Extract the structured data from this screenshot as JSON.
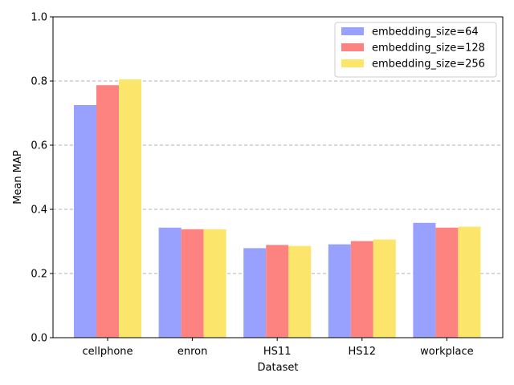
{
  "chart_data": {
    "type": "bar",
    "title": "",
    "xlabel": "Dataset",
    "ylabel": "Mean MAP",
    "ylim": [
      0,
      1.0
    ],
    "yticks": [
      "0.0",
      "0.2",
      "0.4",
      "0.6",
      "0.8",
      "1.0"
    ],
    "grid": "horizontal dashed",
    "legend_position": "top-right",
    "categories": [
      "cellphone",
      "enron",
      "HS11",
      "HS12",
      "workplace"
    ],
    "series": [
      {
        "name": "embedding_size=64",
        "color": "#98a2fe",
        "values": [
          0.725,
          0.343,
          0.279,
          0.291,
          0.358
        ]
      },
      {
        "name": "embedding_size=128",
        "color": "#fd8381",
        "values": [
          0.787,
          0.338,
          0.289,
          0.301,
          0.343
        ]
      },
      {
        "name": "embedding_size=256",
        "color": "#fbe56b",
        "values": [
          0.805,
          0.338,
          0.286,
          0.306,
          0.346
        ]
      }
    ]
  }
}
